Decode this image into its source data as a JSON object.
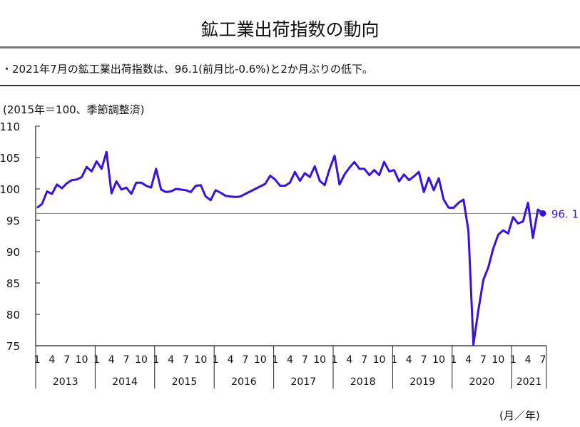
{
  "header": {
    "title": "鉱工業出荷指数の動向",
    "summary": "・2021年7月の鉱工業出荷指数は、96.1(前月比-0.6%)と2か月ぶりの低下。"
  },
  "chart_data": {
    "type": "line",
    "unit_label": "(2015年＝100、季節調整済)",
    "x_unit_label": "(月／年)",
    "ylim": [
      75,
      110
    ],
    "yticks": [
      75,
      80,
      85,
      90,
      95,
      100,
      105,
      110
    ],
    "month_ticks": [
      "1",
      "4",
      "7",
      "10"
    ],
    "years": [
      "2013",
      "2014",
      "2015",
      "2016",
      "2017",
      "2018",
      "2019",
      "2020",
      "2021"
    ],
    "start": "2013-01",
    "end": "2021-07",
    "line_color": "#3a10e0",
    "reference_line": 96.1,
    "last_label": "96. 1",
    "values": [
      97.0,
      97.6,
      99.6,
      99.2,
      100.7,
      100.1,
      100.9,
      101.4,
      101.5,
      101.9,
      103.5,
      102.8,
      104.4,
      103.2,
      105.9,
      99.3,
      101.2,
      99.9,
      100.2,
      99.2,
      101.0,
      101.0,
      100.5,
      100.2,
      103.2,
      99.9,
      99.5,
      99.6,
      100.0,
      99.9,
      99.8,
      99.5,
      100.5,
      100.6,
      98.8,
      98.2,
      99.8,
      99.4,
      98.9,
      98.8,
      98.7,
      98.8,
      99.2,
      99.6,
      100.0,
      100.4,
      100.8,
      102.1,
      101.5,
      100.5,
      100.5,
      101.0,
      102.7,
      101.3,
      102.5,
      101.9,
      103.6,
      101.3,
      100.6,
      103.2,
      105.3,
      100.7,
      102.3,
      103.4,
      104.3,
      103.2,
      103.2,
      102.2,
      103.0,
      102.2,
      104.3,
      102.8,
      103.0,
      101.2,
      102.3,
      101.4,
      102.0,
      102.7,
      99.5,
      101.8,
      99.8,
      101.7,
      98.3,
      97.0,
      97.0,
      97.8,
      98.3,
      93.3,
      75.2,
      80.7,
      85.5,
      87.5,
      90.5,
      92.7,
      93.4,
      92.9,
      95.5,
      94.5,
      94.8,
      97.8,
      92.2,
      96.7,
      96.1
    ]
  }
}
